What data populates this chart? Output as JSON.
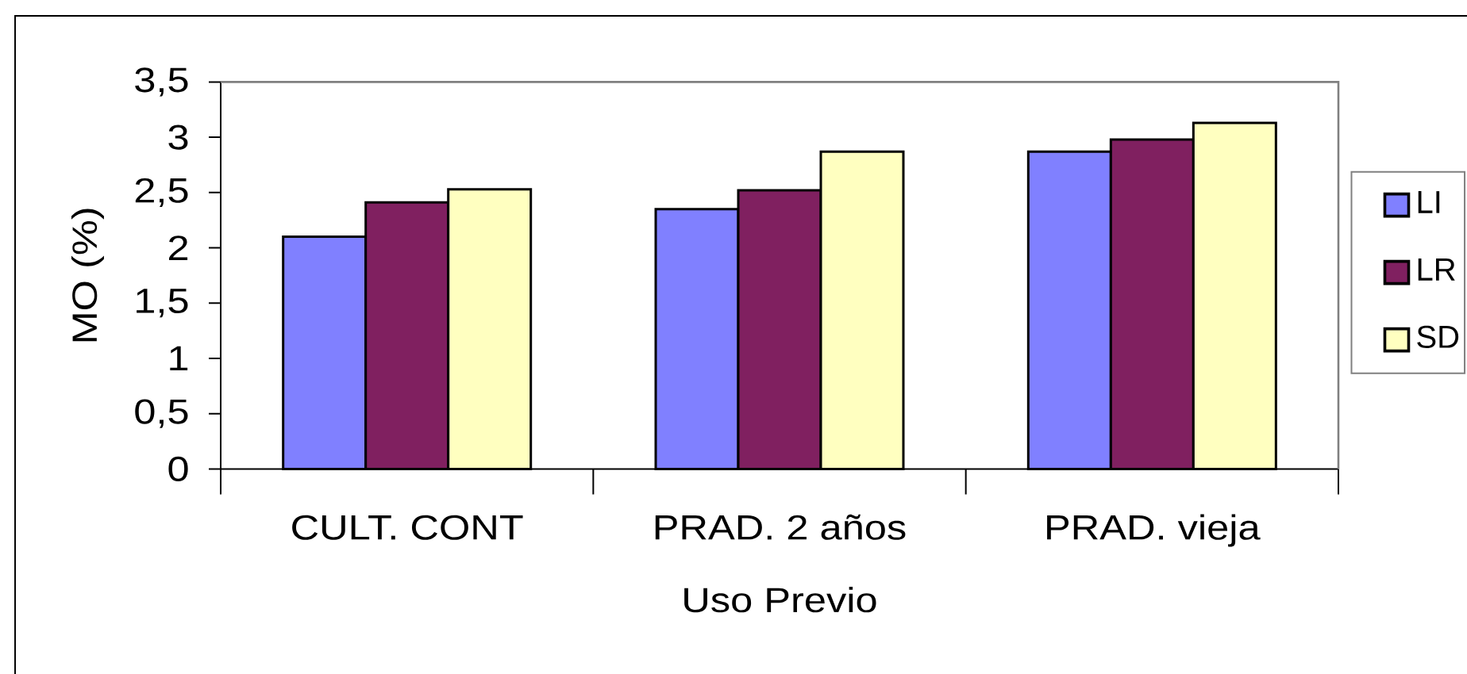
{
  "chart_data": {
    "type": "bar",
    "xlabel": "Uso Previo",
    "ylabel": "MO (%)",
    "categories": [
      "CULT. CONT",
      "PRAD. 2 años",
      "PRAD. vieja"
    ],
    "series": [
      {
        "name": "LI",
        "color": "#8080ff",
        "values": [
          2.1,
          2.35,
          2.87
        ]
      },
      {
        "name": "LR",
        "color": "#802060",
        "values": [
          2.41,
          2.52,
          2.98
        ]
      },
      {
        "name": "SD",
        "color": "#ffffc0",
        "values": [
          2.53,
          2.87,
          3.13
        ]
      }
    ],
    "ylim": [
      0,
      3.5
    ],
    "yticks": [
      0,
      {
        "value": 0.5,
        "label": "0,5"
      },
      1,
      {
        "value": 1.5,
        "label": "1,5"
      },
      2,
      {
        "value": 2.5,
        "label": "2,5"
      },
      3,
      {
        "value": 3.5,
        "label": "3,5"
      }
    ],
    "legend": "right"
  }
}
